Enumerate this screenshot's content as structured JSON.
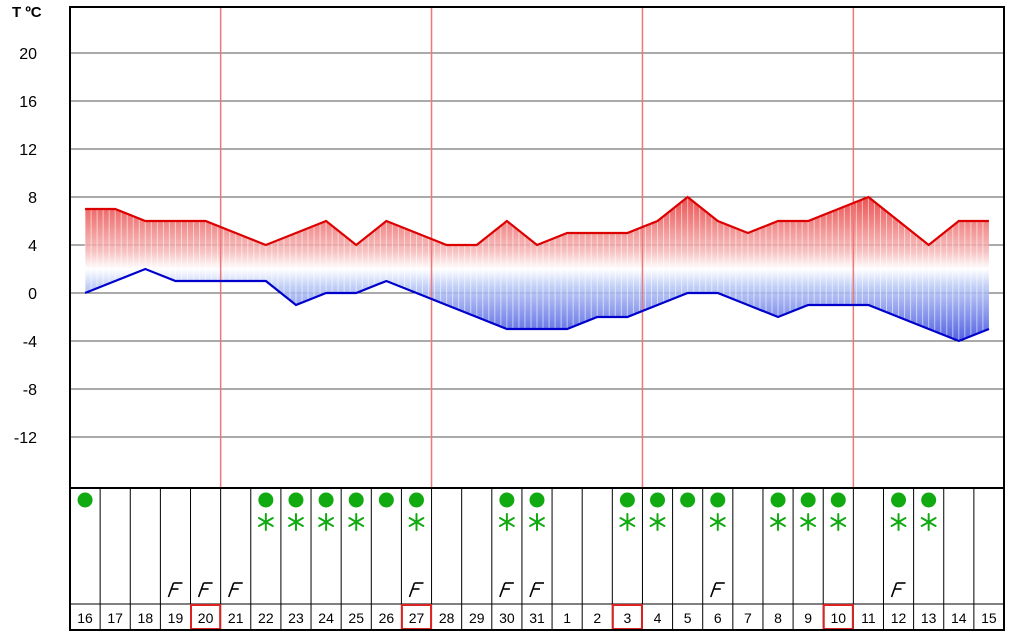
{
  "chart_data": {
    "type": "area",
    "ylabel": "T ºC",
    "ylim": [
      -16,
      24
    ],
    "yticks": [
      20,
      16,
      12,
      8,
      4,
      0,
      -4,
      -8,
      -12
    ],
    "grid": true,
    "days": [
      "16",
      "17",
      "18",
      "19",
      "20",
      "21",
      "22",
      "23",
      "24",
      "25",
      "26",
      "27",
      "28",
      "29",
      "30",
      "31",
      "1",
      "2",
      "3",
      "4",
      "5",
      "6",
      "7",
      "8",
      "9",
      "10",
      "11",
      "12",
      "13",
      "14",
      "15"
    ],
    "highlighted_days": [
      "20",
      "27",
      "3",
      "10"
    ],
    "week_separators_after": [
      "20",
      "27",
      "3",
      "10"
    ],
    "series": [
      {
        "role": "max",
        "color": "#dd0000",
        "values": [
          7,
          7,
          6,
          6,
          6,
          5,
          4,
          5,
          6,
          4,
          6,
          5,
          4,
          4,
          6,
          4,
          5,
          5,
          5,
          6,
          8,
          6,
          5,
          6,
          6,
          7,
          8,
          6,
          4,
          6,
          6
        ]
      },
      {
        "role": "min",
        "color": "#0000cc",
        "values": [
          0,
          1,
          2,
          1,
          1,
          1,
          1,
          -1,
          0,
          0,
          1,
          0,
          -1,
          -2,
          -3,
          -3,
          -3,
          -2,
          -2,
          -1,
          0,
          0,
          -1,
          -2,
          -1,
          -1,
          -1,
          -2,
          -3,
          -4,
          -3
        ]
      }
    ],
    "weather_icons": {
      "sun_days": [
        "16",
        "22",
        "23",
        "24",
        "25",
        "26",
        "27",
        "30",
        "31",
        "3",
        "4",
        "5",
        "6",
        "8",
        "9",
        "10",
        "12",
        "13"
      ],
      "snow_days": [
        "22",
        "23",
        "24",
        "25",
        "27",
        "30",
        "31",
        "3",
        "4",
        "6",
        "8",
        "9",
        "10",
        "12",
        "13"
      ],
      "wind_days": [
        "19",
        "20",
        "21",
        "27",
        "30",
        "31",
        "6",
        "12"
      ]
    },
    "colors": {
      "sun": "#11aa11",
      "snow": "#11aa11",
      "wind": "#000000",
      "week_line": "#ee7777",
      "highlight_box": "#dd2222",
      "grid": "#555555"
    }
  }
}
